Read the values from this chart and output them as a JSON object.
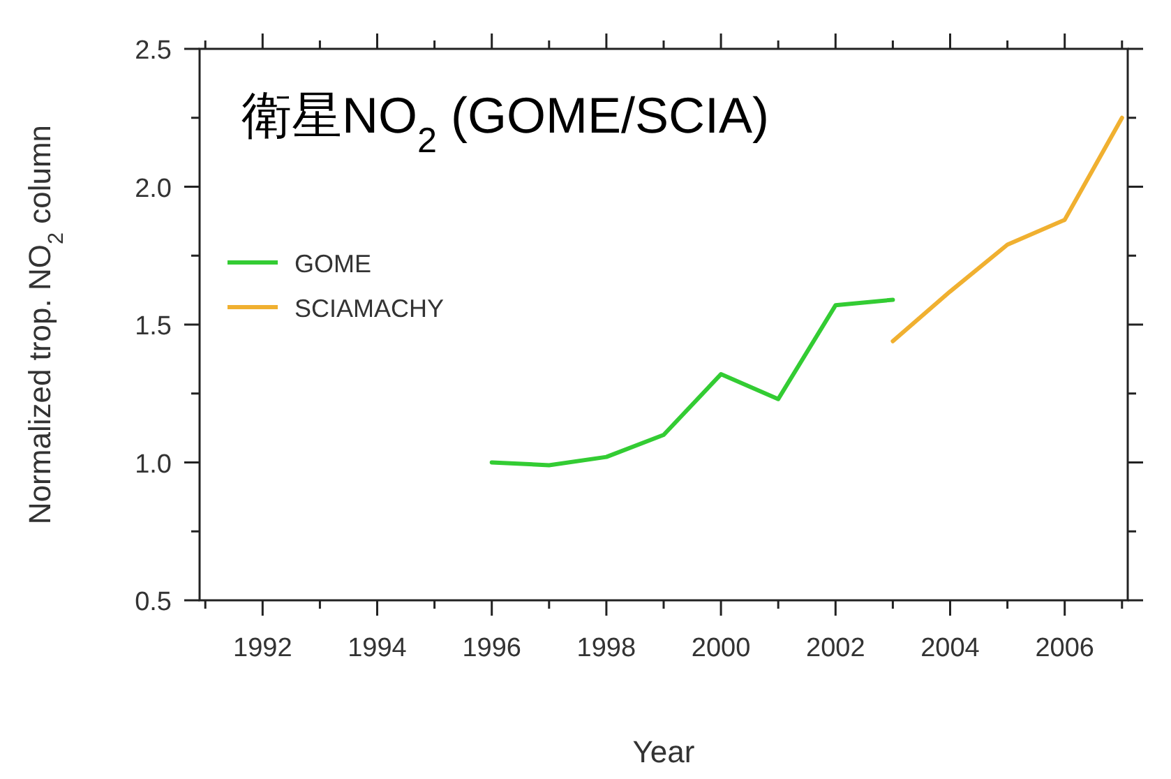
{
  "chart_data": {
    "type": "line",
    "title": "衛星NO$_{2}$ (GOME/SCIA)",
    "xlabel": "Year",
    "ylabel": "Normalized trop. NO$_{2}$ column",
    "xlim": [
      1990.9,
      2007.1
    ],
    "ylim": [
      0.5,
      2.5
    ],
    "xticks": [
      {
        "value": 1991,
        "label": null
      },
      1992,
      {
        "value": 1993,
        "label": null
      },
      1994,
      {
        "value": 1995,
        "label": null
      },
      1996,
      {
        "value": 1997,
        "label": null
      },
      1998,
      {
        "value": 1999,
        "label": null
      },
      2000,
      {
        "value": 2001,
        "label": null
      },
      2002,
      {
        "value": 2003,
        "label": null
      },
      2004,
      {
        "value": 2005,
        "label": null
      },
      2006,
      {
        "value": 2007,
        "label": null
      }
    ],
    "yticks": [
      0.5,
      {
        "value": 0.75,
        "label": null
      },
      {
        "value": 1,
        "label": "1.0"
      },
      {
        "value": 1.25,
        "label": null
      },
      1.5,
      {
        "value": 1.75,
        "label": null
      },
      {
        "value": 2,
        "label": "2.0"
      },
      {
        "value": 2.25,
        "label": null
      },
      2.5
    ],
    "grid": false,
    "legend": "top left",
    "marker": "none",
    "line_style": "solid",
    "series": [
      {
        "name": "GOME",
        "color": "#33cc33",
        "x": [
          1996,
          1997,
          1998,
          1999,
          2000,
          2001,
          2002,
          2003
        ],
        "values": [
          1.0,
          0.99,
          1.02,
          1.1,
          1.32,
          1.23,
          1.57,
          1.59
        ]
      },
      {
        "name": "SCIAMACHY",
        "color": "#f0b030",
        "x": [
          2003,
          2004,
          2005,
          2006,
          2007
        ],
        "values": [
          1.44,
          1.62,
          1.79,
          1.88,
          2.25
        ]
      }
    ]
  }
}
